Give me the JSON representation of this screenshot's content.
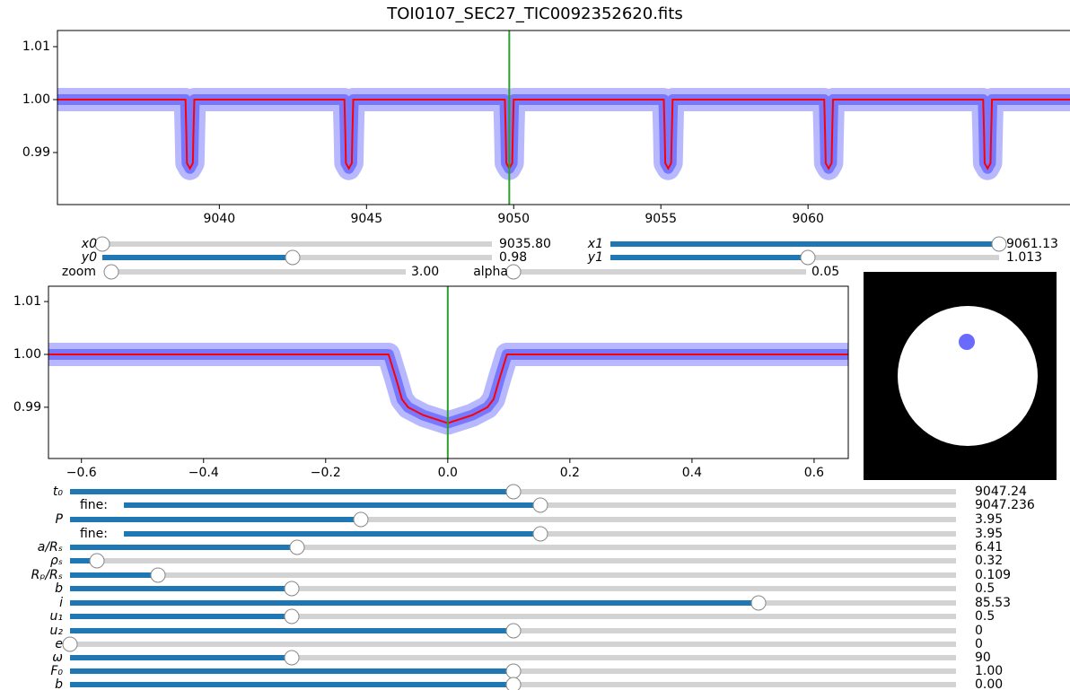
{
  "title": "TOI0107_SEC27_TIC0092352620.fits",
  "chart_data": [
    {
      "type": "line",
      "marker_color": "#0000ff",
      "xlim": [
        9034.5,
        9068.9
      ],
      "ylim": [
        0.98017,
        1.01305
      ],
      "xticks": [
        9040,
        9045,
        9050,
        9055,
        9060
      ],
      "yticks": [
        0.99,
        {
          "value": 1,
          "label": "1.00"
        },
        1.01
      ],
      "vline": 9049.85,
      "vline_color": "#2ca02c",
      "x": [
        9034.5,
        9038.85,
        9038.88,
        9038.9,
        9039.0,
        9039.1,
        9039.12,
        9039.15,
        9044.25,
        9044.28,
        9044.3,
        9044.4,
        9044.5,
        9044.52,
        9044.55,
        9049.7,
        9049.73,
        9049.75,
        9049.85,
        9049.95,
        9049.97,
        9050.0,
        9055.1,
        9055.13,
        9055.15,
        9055.25,
        9055.35,
        9055.37,
        9055.4,
        9060.55,
        9060.58,
        9060.6,
        9060.7,
        9060.8,
        9060.82,
        9060.85,
        9065.95,
        9065.98,
        9066.0,
        9066.1,
        9066.2,
        9066.22,
        9066.25,
        9068.9
      ],
      "series": [
        {
          "color": "#ff0000",
          "values": [
            1,
            1,
            0.9935,
            0.988,
            0.987,
            0.988,
            0.9935,
            1,
            1,
            0.9935,
            0.988,
            0.987,
            0.988,
            0.9935,
            1,
            1,
            0.9935,
            0.988,
            0.987,
            0.988,
            0.9935,
            1,
            1,
            0.9935,
            0.988,
            0.987,
            0.988,
            0.9935,
            1,
            1,
            0.9935,
            0.988,
            0.987,
            0.988,
            0.9935,
            1,
            1,
            0.9935,
            0.988,
            0.987,
            0.988,
            0.9935,
            1,
            1
          ]
        }
      ]
    },
    {
      "type": "line",
      "marker_color": "#0000ff",
      "xlim": [
        -0.654,
        0.656
      ],
      "ylim": [
        0.9803,
        1.0129
      ],
      "xticks": [
        {
          "value": -0.6,
          "label": "−0.6"
        },
        {
          "value": -0.4,
          "label": "−0.4"
        },
        {
          "value": -0.2,
          "label": "−0.2"
        },
        {
          "value": 0,
          "label": "0.0"
        },
        0.2,
        0.4,
        0.6
      ],
      "yticks": [
        0.99,
        {
          "value": 1,
          "label": "1.00"
        },
        1.01
      ],
      "vline": 0,
      "vline_color": "#2ca02c",
      "x": [
        -0.654,
        -0.097,
        -0.085,
        -0.075,
        -0.065,
        -0.04,
        0,
        0.04,
        0.065,
        0.075,
        0.085,
        0.097,
        0.656
      ],
      "series": [
        {
          "color": "#ff0000",
          "values": [
            1,
            1,
            0.9955,
            0.9915,
            0.99,
            0.9885,
            0.987,
            0.9885,
            0.99,
            0.9915,
            0.9955,
            1,
            1
          ]
        }
      ]
    }
  ],
  "sliders": {
    "view": [
      {
        "label": "x0",
        "value": "9035.80"
      },
      {
        "label": "y0",
        "value": "0.98"
      },
      {
        "label": "zoom",
        "value": "3.00"
      },
      {
        "label": "x1",
        "value": "9061.13"
      },
      {
        "label": "y1",
        "value": "1.013"
      },
      {
        "label": "alpha",
        "value": "0.05"
      }
    ],
    "params": [
      {
        "label": "t₀",
        "value": "9047.24"
      },
      {
        "label": "fine:",
        "value": "9047.236"
      },
      {
        "label": "P",
        "value": "3.95"
      },
      {
        "label": "fine:",
        "value": "3.95"
      },
      {
        "label": "a/Rₛ",
        "value": "6.41"
      },
      {
        "label": "ρₛ",
        "value": "0.32"
      },
      {
        "label": "Rₚ/Rₛ",
        "value": "0.109"
      },
      {
        "label": "b",
        "value": "0.5"
      },
      {
        "label": "i",
        "value": "85.53"
      },
      {
        "label": "u₁",
        "value": "0.5"
      },
      {
        "label": "u₂",
        "value": "0"
      },
      {
        "label": "e",
        "value": "0"
      },
      {
        "label": "ω",
        "value": "90"
      },
      {
        "label": "F₀",
        "value": "1.00"
      },
      {
        "label": "b",
        "value": "0.00"
      }
    ]
  }
}
